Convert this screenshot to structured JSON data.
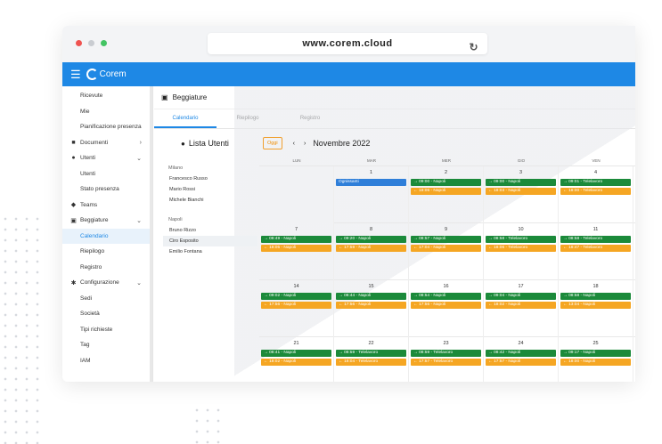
{
  "browser": {
    "url": "www.corem.cloud"
  },
  "app": {
    "brand": "Corem"
  },
  "sidebar": {
    "items": [
      {
        "label": "Ricevute",
        "type": "sub"
      },
      {
        "label": "Mie",
        "type": "sub"
      },
      {
        "label": "Pianificazione presenza",
        "type": "sub"
      },
      {
        "label": "Documenti",
        "type": "parent",
        "icon": "folder-icon",
        "chev": "›"
      },
      {
        "label": "Utenti",
        "type": "parent",
        "icon": "person-icon",
        "chev": "⌄"
      },
      {
        "label": "Utenti",
        "type": "sub"
      },
      {
        "label": "Stato presenza",
        "type": "sub"
      },
      {
        "label": "Teams",
        "type": "parent",
        "icon": "group-icon",
        "chev": ""
      },
      {
        "label": "Beggiature",
        "type": "parent",
        "icon": "badge-icon",
        "chev": "⌄"
      },
      {
        "label": "Calendario",
        "type": "sub",
        "active": true
      },
      {
        "label": "Riepilogo",
        "type": "sub"
      },
      {
        "label": "Registro",
        "type": "sub"
      },
      {
        "label": "Configurazione",
        "type": "parent",
        "icon": "gear-icon",
        "chev": "⌄"
      },
      {
        "label": "Sedi",
        "type": "sub"
      },
      {
        "label": "Società",
        "type": "sub"
      },
      {
        "label": "Tipi richieste",
        "type": "sub"
      },
      {
        "label": "Tag",
        "type": "sub"
      },
      {
        "label": "IAM",
        "type": "sub"
      }
    ]
  },
  "page": {
    "title": "Beggiature",
    "tabs": [
      {
        "label": "Calendario",
        "active": true
      },
      {
        "label": "Riepilogo"
      },
      {
        "label": "Registro"
      }
    ]
  },
  "users_panel": {
    "title": "Lista Utenti",
    "groups": [
      {
        "name": "Milano",
        "users": [
          "Francesco Russo",
          "Mario Rossi",
          "Michele Bianchi"
        ]
      },
      {
        "name": "Napoli",
        "users": [
          "Bruno Rizzo",
          "Ciro Esposito",
          "Emilio Fontana"
        ]
      }
    ],
    "selected_user": "Ciro Esposito"
  },
  "calendar": {
    "today_label": "Oggi",
    "month_label": "Novembre 2022",
    "prev_icon": "‹",
    "next_icon": "›",
    "weekdays": [
      "LUN",
      "MAR",
      "MER",
      "GIO",
      "VEN"
    ],
    "weeks": [
      {
        "days": [
          {
            "num": "",
            "grey": true,
            "events": []
          },
          {
            "num": "1",
            "events": [
              {
                "text": "Ognissanti",
                "color": "b"
              }
            ]
          },
          {
            "num": "2",
            "events": [
              {
                "text": "→ 09:00 - Napoli",
                "color": "g"
              },
              {
                "text": "← 18:06 - Napoli",
                "color": "o"
              }
            ]
          },
          {
            "num": "3",
            "events": [
              {
                "text": "→ 09:00 - Napoli",
                "color": "g"
              },
              {
                "text": "← 18:03 - Napoli",
                "color": "o"
              }
            ]
          },
          {
            "num": "4",
            "events": [
              {
                "text": "→ 09:01 - Telelavoro",
                "color": "g"
              },
              {
                "text": "← 18:00 - Telelavoro",
                "color": "o"
              }
            ]
          }
        ]
      },
      {
        "days": [
          {
            "num": "7",
            "events": [
              {
                "text": "→ 08:49 - Napoli",
                "color": "g"
              },
              {
                "text": "← 18:05 - Napoli",
                "color": "o"
              }
            ]
          },
          {
            "num": "8",
            "events": [
              {
                "text": "→ 09:20 - Napoli",
                "color": "g"
              },
              {
                "text": "← 17:59 - Napoli",
                "color": "o"
              }
            ]
          },
          {
            "num": "9",
            "events": [
              {
                "text": "→ 08:57 - Napoli",
                "color": "g"
              },
              {
                "text": "← 17:04 - Napoli",
                "color": "o"
              }
            ]
          },
          {
            "num": "10",
            "events": [
              {
                "text": "→ 08:58 - Telelavoro",
                "color": "g"
              },
              {
                "text": "← 18:06 - Telelavoro",
                "color": "o"
              }
            ]
          },
          {
            "num": "11",
            "events": [
              {
                "text": "→ 08:58 - Telelavoro",
                "color": "g"
              },
              {
                "text": "← 18:47 - Telelavoro",
                "color": "o"
              }
            ]
          }
        ]
      },
      {
        "days": [
          {
            "num": "14",
            "events": [
              {
                "text": "→ 09:02 - Napoli",
                "color": "g"
              },
              {
                "text": "← 17:56 - Napoli",
                "color": "o"
              }
            ]
          },
          {
            "num": "15",
            "events": [
              {
                "text": "→ 08:44 - Napoli",
                "color": "g"
              },
              {
                "text": "← 17:56 - Napoli",
                "color": "o"
              }
            ]
          },
          {
            "num": "16",
            "events": [
              {
                "text": "→ 08:54 - Napoli",
                "color": "g"
              },
              {
                "text": "← 17:56 - Napoli",
                "color": "o"
              }
            ]
          },
          {
            "num": "17",
            "events": [
              {
                "text": "→ 09:04 - Napoli",
                "color": "g"
              },
              {
                "text": "← 18:02 - Napoli",
                "color": "o"
              }
            ]
          },
          {
            "num": "18",
            "events": [
              {
                "text": "→ 08:58 - Napoli",
                "color": "g"
              },
              {
                "text": "← 13:04 - Napoli",
                "color": "o"
              }
            ]
          }
        ]
      },
      {
        "days": [
          {
            "num": "21",
            "events": [
              {
                "text": "→ 08:41 - Napoli",
                "color": "g"
              },
              {
                "text": "← 18:02 - Napoli",
                "color": "o"
              }
            ]
          },
          {
            "num": "22",
            "events": [
              {
                "text": "→ 08:59 - Telelavoro",
                "color": "g"
              },
              {
                "text": "← 18:04 - Telelavoro",
                "color": "o"
              }
            ]
          },
          {
            "num": "23",
            "events": [
              {
                "text": "→ 08:59 - Telelavoro",
                "color": "g"
              },
              {
                "text": "← 17:57 - Telelavoro",
                "color": "o"
              }
            ]
          },
          {
            "num": "24",
            "events": [
              {
                "text": "→ 08:42 - Napoli",
                "color": "g"
              },
              {
                "text": "← 17:57 - Napoli",
                "color": "o"
              }
            ]
          },
          {
            "num": "25",
            "events": [
              {
                "text": "→ 09:17 - Napoli",
                "color": "g"
              },
              {
                "text": "← 18:00 - Napoli",
                "color": "o"
              }
            ]
          }
        ]
      }
    ]
  }
}
